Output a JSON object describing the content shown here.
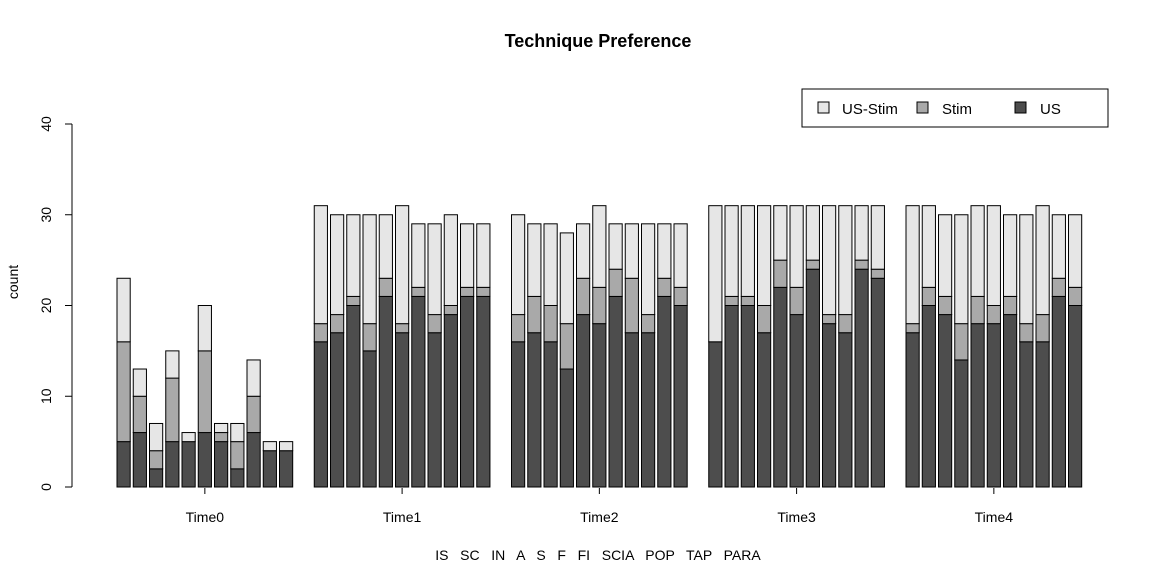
{
  "chart_data": {
    "type": "bar",
    "stacked": true,
    "title": "Technique Preference",
    "ylabel": "count",
    "xlabel": "IS   SC   IN   A   S   F   FI   SCIA   POP   TAP   PARA",
    "ylim": [
      0,
      40
    ],
    "yticks": [
      0,
      10,
      20,
      30,
      40
    ],
    "groups": [
      "Time0",
      "Time1",
      "Time2",
      "Time3",
      "Time4"
    ],
    "techniques": [
      "IS",
      "SC",
      "IN",
      "A",
      "S",
      "F",
      "FI",
      "SCIA",
      "POP",
      "TAP",
      "PARA"
    ],
    "legend": {
      "position": "top-right",
      "entries": [
        {
          "name": "US-Stim",
          "color": "#e6e6e6"
        },
        {
          "name": "Stim",
          "color": "#a9a9a9"
        },
        {
          "name": "US",
          "color": "#4d4d4d"
        }
      ]
    },
    "series": [
      {
        "name": "US",
        "color": "#4d4d4d",
        "values": [
          [
            5,
            6,
            2,
            5,
            5,
            6,
            5,
            2,
            6,
            4,
            4
          ],
          [
            16,
            17,
            20,
            15,
            21,
            17,
            21,
            17,
            19,
            21,
            21
          ],
          [
            16,
            17,
            16,
            13,
            19,
            18,
            21,
            17,
            17,
            21,
            20
          ],
          [
            16,
            20,
            20,
            17,
            22,
            19,
            24,
            18,
            17,
            24,
            23
          ],
          [
            17,
            20,
            19,
            14,
            18,
            18,
            19,
            16,
            16,
            21,
            20
          ]
        ]
      },
      {
        "name": "Stim",
        "color": "#a9a9a9",
        "values": [
          [
            11,
            4,
            2,
            7,
            0,
            9,
            1,
            3,
            4,
            0,
            0
          ],
          [
            2,
            2,
            1,
            3,
            2,
            1,
            1,
            2,
            1,
            1,
            1
          ],
          [
            3,
            4,
            4,
            5,
            4,
            4,
            3,
            6,
            2,
            2,
            2
          ],
          [
            0,
            1,
            1,
            3,
            3,
            3,
            1,
            1,
            2,
            1,
            1
          ],
          [
            1,
            2,
            2,
            4,
            3,
            2,
            2,
            2,
            3,
            2,
            2
          ]
        ]
      },
      {
        "name": "US-Stim",
        "color": "#e6e6e6",
        "values": [
          [
            7,
            3,
            3,
            3,
            1,
            5,
            1,
            2,
            4,
            1,
            1
          ],
          [
            13,
            11,
            9,
            12,
            7,
            13,
            7,
            10,
            10,
            7,
            7
          ],
          [
            11,
            8,
            9,
            10,
            6,
            9,
            5,
            6,
            10,
            6,
            7
          ],
          [
            15,
            10,
            10,
            11,
            6,
            9,
            6,
            12,
            12,
            6,
            7
          ],
          [
            13,
            9,
            9,
            12,
            10,
            11,
            9,
            12,
            12,
            7,
            8
          ]
        ]
      }
    ]
  }
}
